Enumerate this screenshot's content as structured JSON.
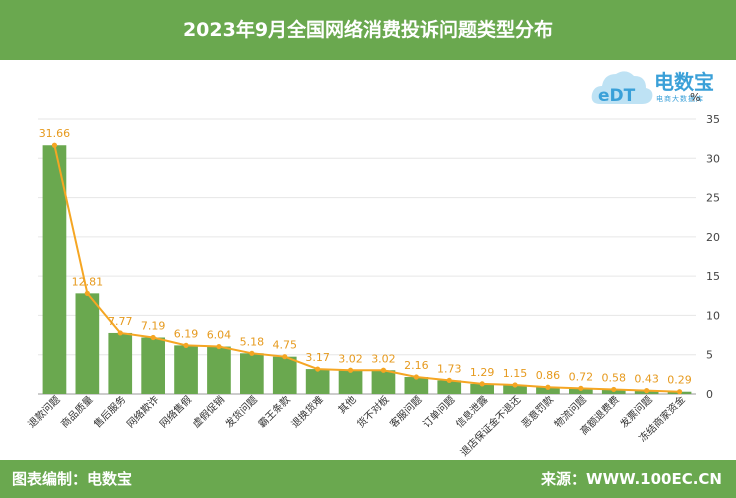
{
  "header": {
    "title": "2023年9月全国网络消费投诉问题类型分布"
  },
  "footer": {
    "left": "图表编制：电数宝",
    "right": "来源：WWW.100EC.CN"
  },
  "logo": {
    "name": "电数宝",
    "sub": "电商大数据库",
    "badge": "eDT"
  },
  "colors": {
    "bar": "#6aa84f",
    "line": "#f5a623",
    "label": "#e69a1e",
    "header": "#6aa84f",
    "logo": "#3aa0d8"
  },
  "chart_data": {
    "type": "bar",
    "unit": "%",
    "categories": [
      "退款问题",
      "商品质量",
      "售后服务",
      "网络欺诈",
      "网络售假",
      "虚假促销",
      "发货问题",
      "霸王条款",
      "退换货难",
      "其他",
      "货不对板",
      "客服问题",
      "订单问题",
      "信息泄露",
      "退店保证金不退还",
      "恶意罚款",
      "物流问题",
      "高额退费费",
      "发票问题",
      "冻结商家资金"
    ],
    "values": [
      31.66,
      12.81,
      7.77,
      7.19,
      6.19,
      6.04,
      5.18,
      4.75,
      3.17,
      3.02,
      3.02,
      2.16,
      1.73,
      1.29,
      1.15,
      0.86,
      0.72,
      0.58,
      0.43,
      0.29
    ],
    "value_labels": [
      "31.66",
      "12.81",
      "7.77",
      "7.19",
      "6.19",
      "6.04",
      "5.18",
      "4.75",
      "3.17",
      "3.02",
      "3.02",
      "2.16",
      "1.73",
      "1.29",
      "1.15",
      "0.86",
      "0.72",
      "0.58",
      "0.43",
      "0.29"
    ],
    "y_ticks": [
      "0",
      "5",
      "10",
      "15",
      "20",
      "25",
      "30",
      "35"
    ],
    "ylim": [
      0,
      35
    ],
    "grid": true,
    "y_axis_position": "right",
    "overlay_line": true
  }
}
